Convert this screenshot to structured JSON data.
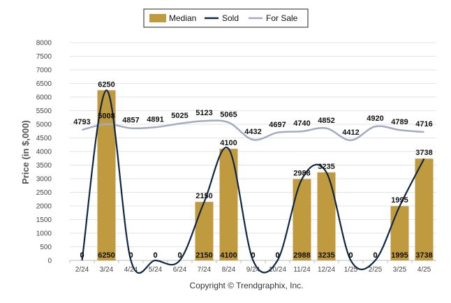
{
  "chart_data": {
    "type": "bar",
    "ylabel": "Price (in $,000)",
    "ylim": [
      0,
      8000
    ],
    "ytick_step": 500,
    "categories": [
      "2/24",
      "3/24",
      "4/24",
      "5/24",
      "6/24",
      "7/24",
      "8/24",
      "9/24",
      "10/24",
      "11/24",
      "12/24",
      "1/25",
      "2/25",
      "3/25",
      "4/25"
    ],
    "series": [
      {
        "name": "Median",
        "kind": "bar",
        "color": "#c09a3e",
        "values": [
          0,
          6250,
          0,
          0,
          0,
          2150,
          4100,
          0,
          0,
          2988,
          3235,
          0,
          0,
          1995,
          3738
        ]
      },
      {
        "name": "Sold",
        "kind": "line",
        "color": "#0f2745",
        "values": [
          0,
          6250,
          0,
          0,
          0,
          2150,
          4100,
          0,
          0,
          2988,
          3235,
          0,
          0,
          1995,
          3738
        ]
      },
      {
        "name": "For Sale",
        "kind": "line",
        "color": "#a3abc2",
        "values": [
          4793,
          5008,
          4857,
          4891,
          5025,
          5123,
          5065,
          4432,
          4697,
          4740,
          4852,
          4412,
          4920,
          4789,
          4716
        ]
      }
    ],
    "grid": true,
    "legend": "top-center"
  },
  "copyright": "Copyright © Trendgraphix, Inc."
}
